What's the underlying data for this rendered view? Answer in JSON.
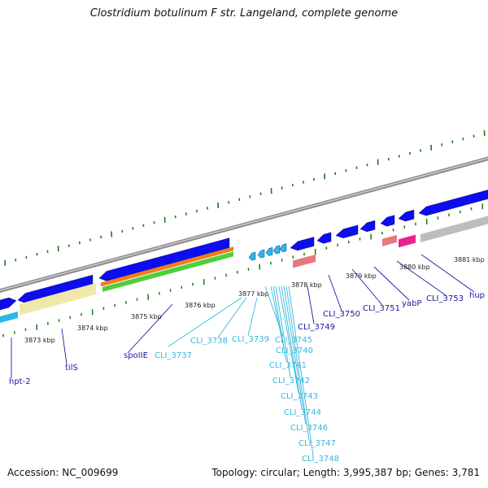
{
  "title": "Clostridium botulinum F str. Langeland, complete genome",
  "accession": "Accession: NC_009699",
  "topology": "Topology: circular; Length: 3,995,387 bp; Genes: 3,781",
  "colors": {
    "backbone": "#8c8c8c",
    "cds": "#0d0df0",
    "cds_light": "#2ab8e8",
    "gc_marks": "#1a7a1a",
    "label_dark": "#1a1aa0",
    "label_light": "#33b8dd",
    "trna": "#e87880",
    "rrna_pink": "#e8248c",
    "gray_feature": "#bdbdbd",
    "yellow_feature": "#f0e8a8",
    "orange_feature": "#ef7d1a",
    "green_feature": "#4fcf3a"
  },
  "ticks": [
    {
      "label": "3873 kbp"
    },
    {
      "label": "3874 kbp"
    },
    {
      "label": "3875 kbp"
    },
    {
      "label": "3876 kbp"
    },
    {
      "label": "3877 kbp"
    },
    {
      "label": "3878 kbp"
    },
    {
      "label": "3879 kbp"
    },
    {
      "label": "3880 kbp"
    },
    {
      "label": "3881 kbp"
    }
  ],
  "genes": [
    {
      "label": "hpt-2",
      "tone": "dark"
    },
    {
      "label": "tilS",
      "tone": "dark"
    },
    {
      "label": "spoIIE",
      "tone": "dark"
    },
    {
      "label": "CLI_3737",
      "tone": "light"
    },
    {
      "label": "CLI_3738",
      "tone": "light"
    },
    {
      "label": "CLI_3739",
      "tone": "light"
    },
    {
      "label": "CLI_3745",
      "tone": "light"
    },
    {
      "label": "CLI_3740",
      "tone": "light"
    },
    {
      "label": "CLI_3741",
      "tone": "light"
    },
    {
      "label": "CLI_3742",
      "tone": "light"
    },
    {
      "label": "CLI_3743",
      "tone": "light"
    },
    {
      "label": "CLI_3744",
      "tone": "light"
    },
    {
      "label": "CLI_3746",
      "tone": "light"
    },
    {
      "label": "CLI_3747",
      "tone": "light"
    },
    {
      "label": "CLI_3748",
      "tone": "light"
    },
    {
      "label": "CLI_3749",
      "tone": "dark"
    },
    {
      "label": "CLI_3750",
      "tone": "dark"
    },
    {
      "label": "CLI_3751",
      "tone": "dark"
    },
    {
      "label": "yabP",
      "tone": "dark"
    },
    {
      "label": "CLI_3753",
      "tone": "dark"
    },
    {
      "label": "hup",
      "tone": "dark"
    }
  ]
}
